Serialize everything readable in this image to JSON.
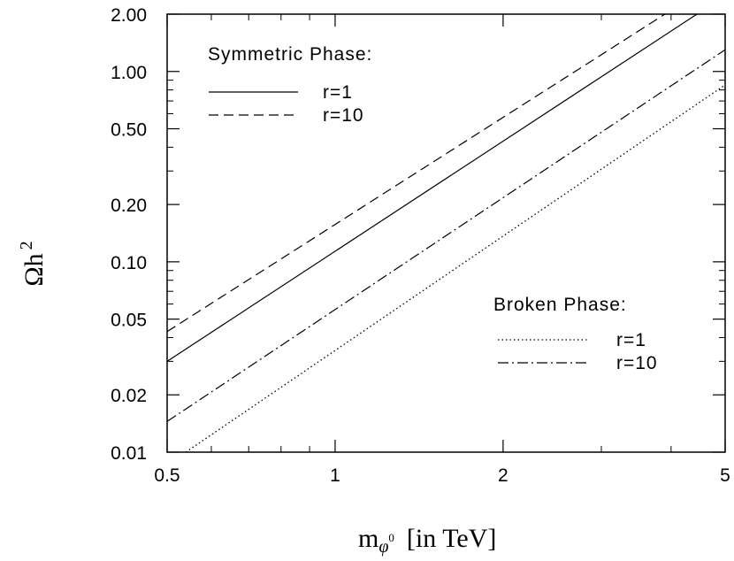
{
  "chart_data": {
    "type": "line",
    "title": "",
    "xlabel": "m_φ⁰ [in TeV]",
    "xlabel_main": "m",
    "xlabel_sub": "φ",
    "xlabel_sup": "0",
    "xlabel_rest": "[in TeV]",
    "ylabel": "Ωh²",
    "ylabel_main": "Ωh",
    "ylabel_sup": "2",
    "x_scale": "log",
    "y_scale": "log",
    "xlim": [
      0.5,
      5
    ],
    "ylim": [
      0.01,
      2.0
    ],
    "x_ticks": [
      {
        "value": 0.5,
        "label": "0.5"
      },
      {
        "value": 1,
        "label": "1"
      },
      {
        "value": 2,
        "label": "2"
      },
      {
        "value": 5,
        "label": "5"
      }
    ],
    "y_ticks": [
      {
        "value": 0.01,
        "label": "0.01"
      },
      {
        "value": 0.02,
        "label": "0.02"
      },
      {
        "value": 0.05,
        "label": "0.05"
      },
      {
        "value": 0.1,
        "label": "0.10"
      },
      {
        "value": 0.2,
        "label": "0.20"
      },
      {
        "value": 0.5,
        "label": "0.50"
      },
      {
        "value": 1.0,
        "label": "1.00"
      },
      {
        "value": 2.0,
        "label": "2.00"
      }
    ],
    "x_minor_ticks": [
      0.6,
      0.7,
      0.8,
      0.9,
      3,
      4
    ],
    "y_minor_ticks": [
      0.03,
      0.04,
      0.06,
      0.07,
      0.08,
      0.09,
      0.3,
      0.4,
      0.6,
      0.7,
      0.8,
      0.9
    ],
    "series": [
      {
        "group": "symmetric",
        "name": "r=1",
        "style": "solid",
        "x": [
          0.5,
          4.45
        ],
        "y": [
          0.03,
          2.0
        ]
      },
      {
        "group": "symmetric",
        "name": "r=10",
        "style": "dashed",
        "x": [
          0.5,
          3.9
        ],
        "y": [
          0.043,
          2.0
        ]
      },
      {
        "group": "broken",
        "name": "r=1",
        "style": "dotted",
        "x": [
          0.54,
          5
        ],
        "y": [
          0.01,
          0.85
        ]
      },
      {
        "group": "broken",
        "name": "r=10",
        "style": "dashdot",
        "x": [
          0.5,
          5
        ],
        "y": [
          0.0145,
          1.3
        ]
      }
    ],
    "legends": [
      {
        "title": "Symmetric Phase:",
        "entries": [
          {
            "label": "r=1",
            "style": "solid"
          },
          {
            "label": "r=10",
            "style": "dashed"
          }
        ]
      },
      {
        "title": "Broken Phase:",
        "entries": [
          {
            "label": "r=1",
            "style": "dotted"
          },
          {
            "label": "r=10",
            "style": "dashdot"
          }
        ]
      }
    ],
    "grid": false,
    "legend_placement": [
      "top-left",
      "bottom-right"
    ]
  }
}
